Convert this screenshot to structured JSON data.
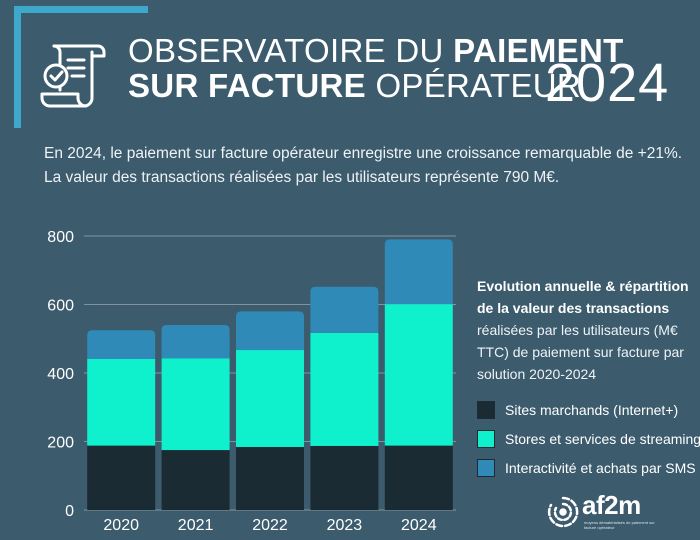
{
  "header": {
    "title_line1_light": "OBSERVATOIRE DU ",
    "title_line1_bold": "PAIEMENT",
    "title_line2_bold": "SUR FACTURE",
    "title_line2_light": " OPÉRATEUR",
    "year": "2024",
    "icon": "invoice-check-icon"
  },
  "intro": {
    "line1": "En 2024, le paiement sur facture opérateur enregistre une croissance remarquable de +21%.",
    "line2": "La valeur des transactions réalisées par les utilisateurs représente 790 M€."
  },
  "description": {
    "bold": "Evolution annuelle & répartition de la valeur des transactions",
    "rest": " réalisées par les utilisateurs (M€ TTC) de paiement sur facture par solution 2020-2024"
  },
  "chart_data": {
    "type": "bar",
    "stacked": true,
    "categories": [
      "2020",
      "2021",
      "2022",
      "2023",
      "2024"
    ],
    "series": [
      {
        "name": "Sites marchands (Internet+)",
        "color": "#1b2b34",
        "values": [
          188,
          175,
          184,
          187,
          188
        ]
      },
      {
        "name": "Stores et services de streaming",
        "color": "#0ff0cc",
        "values": [
          253,
          268,
          283,
          330,
          413
        ]
      },
      {
        "name": "Interactivité et achats par SMS",
        "color": "#2f8ab8",
        "values": [
          84,
          97,
          113,
          135,
          189
        ]
      }
    ],
    "yticks": [
      0,
      200,
      400,
      600,
      800
    ],
    "ylim": [
      0,
      800
    ],
    "grid": true,
    "legend_position": "right"
  },
  "logo": {
    "text": "af2m",
    "tagline": "moyens dématérialisés de paiement sur facture opérateur",
    "icon": "af2m-logo-icon"
  }
}
